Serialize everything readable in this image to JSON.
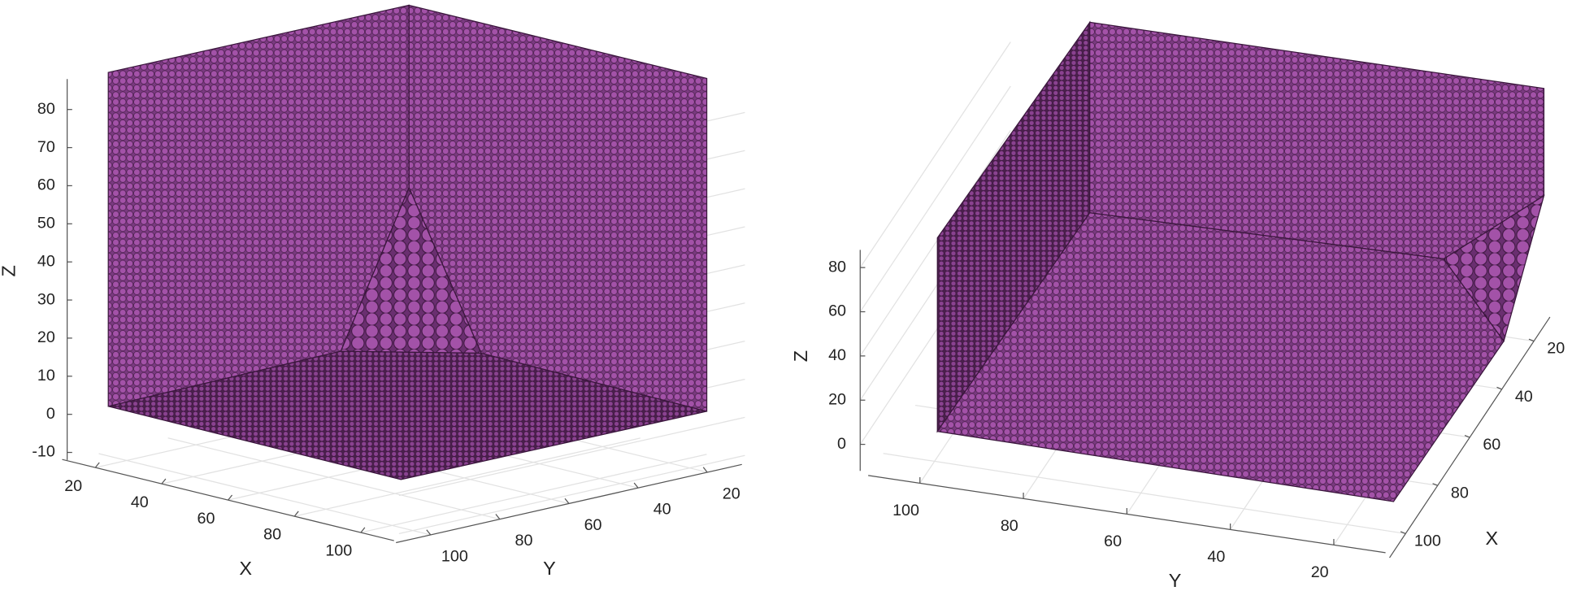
{
  "chart_data": [
    {
      "type": "scatter3d",
      "xlabel": "X",
      "ylabel": "Y",
      "zlabel": "Z",
      "color": "#a352a8",
      "grid": true,
      "xlim": [
        10,
        110
      ],
      "xticks": [
        20,
        40,
        60,
        80,
        100
      ],
      "ylim": [
        10,
        110
      ],
      "yticks": [
        20,
        40,
        60,
        80,
        100
      ],
      "zlim": [
        -12,
        88
      ],
      "zticks": [
        -10,
        0,
        10,
        20,
        30,
        40,
        50,
        60,
        70,
        80
      ]
    },
    {
      "type": "scatter3d",
      "xlabel": "X",
      "ylabel": "Y",
      "zlabel": "Z",
      "color": "#a352a8",
      "grid": true,
      "xlim": [
        10,
        110
      ],
      "xticks": [
        20,
        40,
        60,
        80,
        100
      ],
      "ylim": [
        10,
        110
      ],
      "yticks": [
        20,
        40,
        60,
        80,
        100
      ],
      "zlim": [
        -12,
        88
      ],
      "zticks": [
        0,
        20,
        40,
        60,
        80
      ]
    }
  ]
}
